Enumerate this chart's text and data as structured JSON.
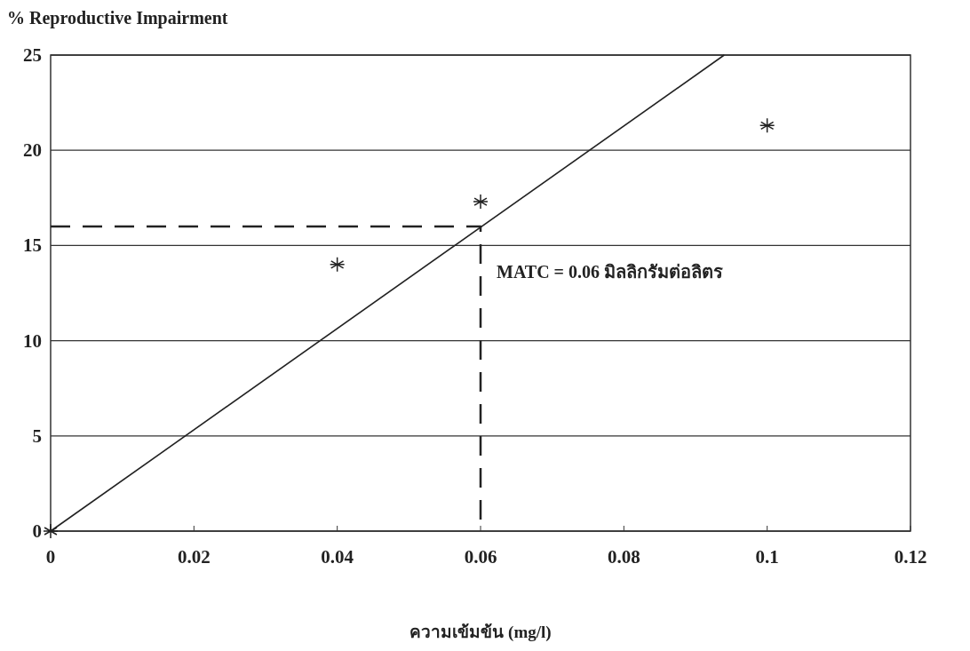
{
  "chart_data": {
    "type": "scatter",
    "ylabel": "% Reproductive Impairment",
    "xlabel": "ความเข้มข้น (mg/l)",
    "xlim": [
      0,
      0.12
    ],
    "xticks": [
      0,
      0.02,
      0.04,
      0.06,
      0.08,
      0.1,
      0.12
    ],
    "ylim": [
      0,
      25
    ],
    "yticks": [
      0,
      5,
      10,
      15,
      20,
      25
    ],
    "grid": "y",
    "series": [
      {
        "color": "#222222",
        "marker": "cross",
        "x": [
          0,
          0.04,
          0.06,
          0.1
        ],
        "values": [
          0,
          14,
          17.3,
          21.3
        ]
      },
      {
        "type": "line",
        "color": "#222222",
        "marker": "none",
        "line_style": "solid",
        "x": [
          0,
          0.094
        ],
        "values": [
          0,
          25
        ]
      },
      {
        "type": "line",
        "color": "#222222",
        "marker": "none",
        "line_style": "dashed",
        "x": [
          0,
          0.06,
          0.06
        ],
        "values": [
          16,
          16,
          0
        ]
      }
    ],
    "annotations": [
      {
        "text": "MATC = 0.06 มิลลิกรัมต่อลิตร",
        "x": 0.06,
        "y": 16
      }
    ]
  }
}
